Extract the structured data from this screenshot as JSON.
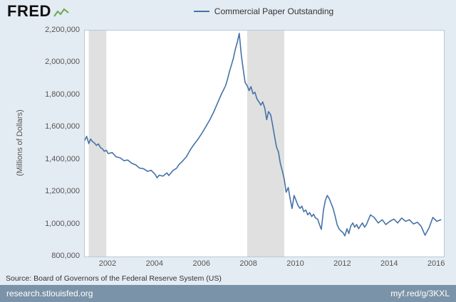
{
  "header": {
    "logo": "FRED"
  },
  "footer": {
    "source": "Source: Board of Governors of the Federal Reserve System (US)",
    "left_link": "research.stlouisfed.org",
    "right_link": "myf.red/g/3KXL"
  },
  "chart_data": {
    "type": "line",
    "title": "",
    "ylabel": "(Millions of Dollars)",
    "xlabel": "",
    "xlim": [
      2001.0,
      2016.3
    ],
    "ylim": [
      800000,
      2200000
    ],
    "x_ticks": [
      2002,
      2004,
      2006,
      2008,
      2010,
      2012,
      2014,
      2016
    ],
    "y_ticks": [
      800000,
      1000000,
      1200000,
      1400000,
      1600000,
      1800000,
      2000000,
      2200000
    ],
    "grid": false,
    "legend_position": "top-center",
    "plot_bg": "#ffffff",
    "recession_color": "#e0e0e0",
    "recessions": [
      [
        2001.17,
        2001.92
      ],
      [
        2007.92,
        2009.5
      ]
    ],
    "series": [
      {
        "name": "Commercial Paper Outstanding",
        "color": "#4572a7",
        "points": [
          [
            2001.0,
            1520000
          ],
          [
            2001.08,
            1545000
          ],
          [
            2001.17,
            1500000
          ],
          [
            2001.25,
            1528000
          ],
          [
            2001.33,
            1512000
          ],
          [
            2001.42,
            1502000
          ],
          [
            2001.5,
            1488000
          ],
          [
            2001.58,
            1498000
          ],
          [
            2001.67,
            1474000
          ],
          [
            2001.75,
            1468000
          ],
          [
            2001.83,
            1452000
          ],
          [
            2001.92,
            1458000
          ],
          [
            2002.0,
            1438000
          ],
          [
            2002.17,
            1444000
          ],
          [
            2002.33,
            1418000
          ],
          [
            2002.5,
            1412000
          ],
          [
            2002.67,
            1394000
          ],
          [
            2002.83,
            1398000
          ],
          [
            2003.0,
            1378000
          ],
          [
            2003.17,
            1368000
          ],
          [
            2003.33,
            1348000
          ],
          [
            2003.5,
            1344000
          ],
          [
            2003.67,
            1328000
          ],
          [
            2003.83,
            1334000
          ],
          [
            2004.0,
            1308000
          ],
          [
            2004.08,
            1288000
          ],
          [
            2004.17,
            1304000
          ],
          [
            2004.33,
            1298000
          ],
          [
            2004.5,
            1318000
          ],
          [
            2004.58,
            1302000
          ],
          [
            2004.75,
            1332000
          ],
          [
            2004.92,
            1348000
          ],
          [
            2005.0,
            1368000
          ],
          [
            2005.17,
            1392000
          ],
          [
            2005.33,
            1418000
          ],
          [
            2005.5,
            1462000
          ],
          [
            2005.67,
            1498000
          ],
          [
            2005.83,
            1528000
          ],
          [
            2006.0,
            1566000
          ],
          [
            2006.17,
            1608000
          ],
          [
            2006.33,
            1648000
          ],
          [
            2006.5,
            1698000
          ],
          [
            2006.67,
            1756000
          ],
          [
            2006.83,
            1808000
          ],
          [
            2007.0,
            1858000
          ],
          [
            2007.08,
            1898000
          ],
          [
            2007.17,
            1948000
          ],
          [
            2007.25,
            1988000
          ],
          [
            2007.33,
            2028000
          ],
          [
            2007.42,
            2088000
          ],
          [
            2007.5,
            2128000
          ],
          [
            2007.58,
            2183000
          ],
          [
            2007.67,
            2048000
          ],
          [
            2007.75,
            1958000
          ],
          [
            2007.83,
            1878000
          ],
          [
            2007.92,
            1858000
          ],
          [
            2008.0,
            1828000
          ],
          [
            2008.08,
            1852000
          ],
          [
            2008.17,
            1808000
          ],
          [
            2008.25,
            1818000
          ],
          [
            2008.33,
            1778000
          ],
          [
            2008.42,
            1758000
          ],
          [
            2008.5,
            1738000
          ],
          [
            2008.58,
            1758000
          ],
          [
            2008.67,
            1718000
          ],
          [
            2008.75,
            1648000
          ],
          [
            2008.83,
            1698000
          ],
          [
            2008.92,
            1678000
          ],
          [
            2009.0,
            1618000
          ],
          [
            2009.08,
            1548000
          ],
          [
            2009.17,
            1478000
          ],
          [
            2009.25,
            1448000
          ],
          [
            2009.33,
            1378000
          ],
          [
            2009.42,
            1328000
          ],
          [
            2009.5,
            1278000
          ],
          [
            2009.58,
            1198000
          ],
          [
            2009.67,
            1228000
          ],
          [
            2009.75,
            1158000
          ],
          [
            2009.83,
            1098000
          ],
          [
            2009.92,
            1178000
          ],
          [
            2010.0,
            1148000
          ],
          [
            2010.08,
            1118000
          ],
          [
            2010.17,
            1098000
          ],
          [
            2010.25,
            1112000
          ],
          [
            2010.33,
            1078000
          ],
          [
            2010.42,
            1088000
          ],
          [
            2010.5,
            1058000
          ],
          [
            2010.58,
            1072000
          ],
          [
            2010.67,
            1048000
          ],
          [
            2010.75,
            1062000
          ],
          [
            2010.83,
            1038000
          ],
          [
            2010.92,
            1032000
          ],
          [
            2011.0,
            998000
          ],
          [
            2011.08,
            968000
          ],
          [
            2011.17,
            1088000
          ],
          [
            2011.25,
            1148000
          ],
          [
            2011.33,
            1178000
          ],
          [
            2011.42,
            1158000
          ],
          [
            2011.5,
            1128000
          ],
          [
            2011.58,
            1098000
          ],
          [
            2011.67,
            1048000
          ],
          [
            2011.75,
            998000
          ],
          [
            2011.83,
            972000
          ],
          [
            2011.92,
            958000
          ],
          [
            2012.0,
            948000
          ],
          [
            2012.08,
            928000
          ],
          [
            2012.17,
            972000
          ],
          [
            2012.25,
            942000
          ],
          [
            2012.33,
            988000
          ],
          [
            2012.42,
            1008000
          ],
          [
            2012.5,
            982000
          ],
          [
            2012.58,
            998000
          ],
          [
            2012.67,
            972000
          ],
          [
            2012.75,
            992000
          ],
          [
            2012.83,
            1008000
          ],
          [
            2012.92,
            982000
          ],
          [
            2013.0,
            998000
          ],
          [
            2013.17,
            1058000
          ],
          [
            2013.33,
            1042000
          ],
          [
            2013.5,
            1008000
          ],
          [
            2013.67,
            1028000
          ],
          [
            2013.83,
            998000
          ],
          [
            2014.0,
            1018000
          ],
          [
            2014.17,
            1032000
          ],
          [
            2014.33,
            1008000
          ],
          [
            2014.5,
            1038000
          ],
          [
            2014.67,
            1018000
          ],
          [
            2014.83,
            1028000
          ],
          [
            2015.0,
            1002000
          ],
          [
            2015.17,
            1012000
          ],
          [
            2015.33,
            988000
          ],
          [
            2015.5,
            932000
          ],
          [
            2015.67,
            978000
          ],
          [
            2015.83,
            1042000
          ],
          [
            2016.0,
            1018000
          ],
          [
            2016.17,
            1028000
          ]
        ]
      }
    ]
  }
}
